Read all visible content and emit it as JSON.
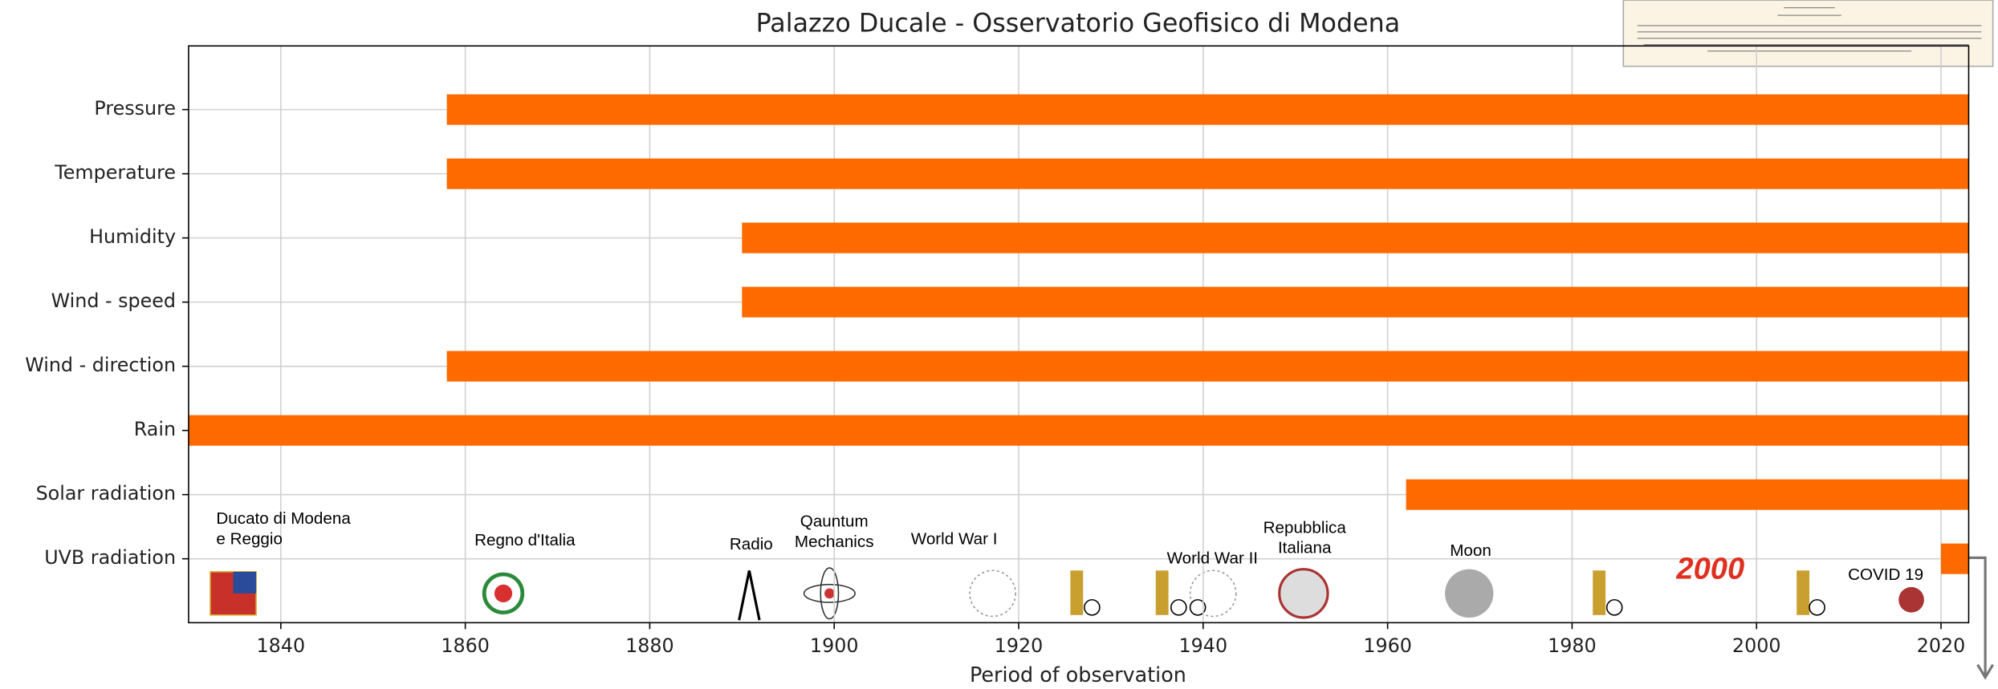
{
  "chart_data": {
    "type": "range-bar",
    "title": "Palazzo Ducale - Osservatorio Geofisico di Modena",
    "x_label": "Period of observation",
    "categories": [
      "Pressure",
      "Temperature",
      "Humidity",
      "Wind - speed",
      "Wind - direction",
      "Rain",
      "Solar radiation",
      "UVB radiation"
    ],
    "start": [
      1858,
      1858,
      1890,
      1890,
      1858,
      1830,
      1962,
      2020
    ],
    "end": [
      2023,
      2023,
      2023,
      2023,
      2023,
      2023,
      2023,
      2023
    ],
    "color": "#ff6a00",
    "xlim": [
      1830,
      2023
    ],
    "xticks": [
      1840,
      1860,
      1880,
      1900,
      1920,
      1940,
      1960,
      1980,
      2000,
      2020
    ],
    "grid": true,
    "annotations": [
      {
        "text": [
          "Ducato di Modena",
          "e Reggio"
        ],
        "x": 1833
      },
      {
        "text": [
          "Regno d'Italia"
        ],
        "x": 1861
      },
      {
        "text": [
          "Radio"
        ],
        "x": 1891
      },
      {
        "text": [
          "Qauntum",
          "Mechanics"
        ],
        "x": 1900
      },
      {
        "text": [
          "World War I"
        ],
        "x": 1913
      },
      {
        "text": [
          "World War II"
        ],
        "x": 1941
      },
      {
        "text": [
          "Repubblica",
          "Italiana"
        ],
        "x": 1951
      },
      {
        "text": [
          "Moon"
        ],
        "x": 1969
      },
      {
        "text": [
          "2000"
        ],
        "x": 1995,
        "color": "#e03020"
      },
      {
        "text": [
          "COVID 19"
        ],
        "x": 2014
      }
    ]
  }
}
